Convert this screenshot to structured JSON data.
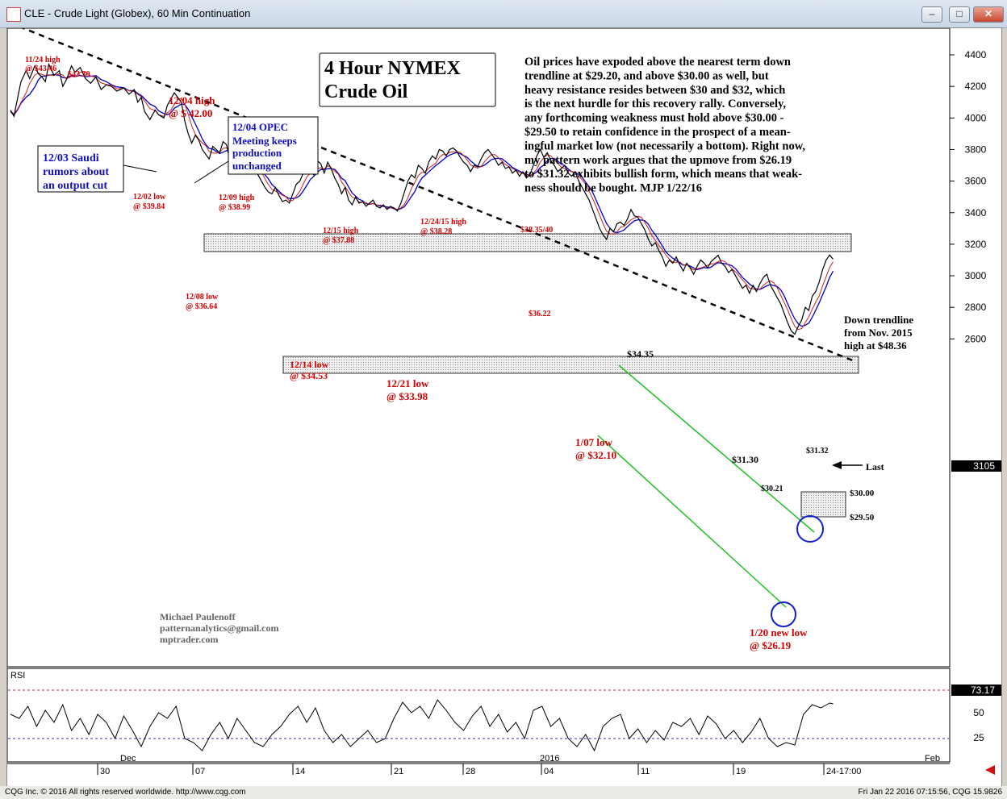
{
  "window": {
    "title": "CLE - Crude Light (Globex), 60 Min Continuation"
  },
  "status": {
    "copyright": "CQG Inc. © 2016 All rights reserved worldwide. http://www.cqg.com",
    "timestamp": "Fri Jan 22 2016 07:15:56, CQG 15.9826"
  },
  "chart_data": {
    "type": "line",
    "title": "4 Hour NYMEX Crude Oil",
    "y_ticks": [
      "4400",
      "4200",
      "4000",
      "3800",
      "3600",
      "3400",
      "3200",
      "3000",
      "2800",
      "2600"
    ],
    "ylim": [
      2520,
      4440
    ],
    "last_price": "3105",
    "x_ticks": [
      "30",
      "07",
      "14",
      "21",
      "28",
      "04",
      "11",
      "19",
      "24-17:00"
    ],
    "month_labels": [
      "Dec",
      "2016",
      "Feb"
    ],
    "series": {
      "price_points": [
        [
          0,
          4050
        ],
        [
          4,
          4010
        ],
        [
          8,
          4120
        ],
        [
          12,
          4230
        ],
        [
          18,
          4300
        ],
        [
          22,
          4250
        ],
        [
          28,
          4330
        ],
        [
          32,
          4280
        ],
        [
          36,
          4260
        ],
        [
          40,
          4230
        ],
        [
          44,
          4340
        ],
        [
          50,
          4270
        ],
        [
          56,
          4300
        ],
        [
          60,
          4200
        ],
        [
          64,
          4240
        ],
        [
          70,
          4330
        ],
        [
          74,
          4290
        ],
        [
          80,
          4320
        ],
        [
          86,
          4250
        ],
        [
          92,
          4220
        ],
        [
          98,
          4260
        ],
        [
          104,
          4180
        ],
        [
          110,
          4210
        ],
        [
          116,
          4200
        ],
        [
          122,
          4170
        ],
        [
          130,
          4190
        ],
        [
          136,
          4150
        ],
        [
          142,
          4180
        ],
        [
          146,
          4100
        ],
        [
          150,
          4130
        ],
        [
          154,
          4040
        ],
        [
          160,
          3990
        ],
        [
          166,
          4050
        ],
        [
          170,
          4020
        ],
        [
          176,
          4000
        ],
        [
          180,
          4080
        ],
        [
          184,
          4120
        ],
        [
          188,
          4160
        ],
        [
          192,
          4130
        ],
        [
          196,
          4100
        ],
        [
          200,
          3980
        ],
        [
          204,
          3900
        ],
        [
          208,
          3840
        ],
        [
          212,
          3890
        ],
        [
          216,
          3860
        ],
        [
          220,
          3800
        ],
        [
          224,
          3770
        ],
        [
          228,
          3740
        ],
        [
          232,
          3820
        ],
        [
          236,
          3800
        ],
        [
          240,
          3780
        ],
        [
          244,
          3850
        ],
        [
          248,
          3830
        ],
        [
          252,
          3720
        ],
        [
          256,
          3800
        ],
        [
          260,
          3810
        ],
        [
          264,
          3790
        ],
        [
          268,
          3740
        ],
        [
          272,
          3690
        ],
        [
          276,
          3730
        ],
        [
          280,
          3680
        ],
        [
          284,
          3640
        ],
        [
          288,
          3600
        ],
        [
          292,
          3560
        ],
        [
          296,
          3530
        ],
        [
          300,
          3520
        ],
        [
          304,
          3560
        ],
        [
          308,
          3510
        ],
        [
          312,
          3470
        ],
        [
          316,
          3480
        ],
        [
          320,
          3460
        ],
        [
          324,
          3520
        ],
        [
          328,
          3580
        ],
        [
          332,
          3600
        ],
        [
          336,
          3650
        ],
        [
          340,
          3690
        ],
        [
          344,
          3680
        ],
        [
          348,
          3640
        ],
        [
          352,
          3730
        ],
        [
          356,
          3710
        ],
        [
          360,
          3650
        ],
        [
          364,
          3720
        ],
        [
          368,
          3680
        ],
        [
          372,
          3620
        ],
        [
          376,
          3580
        ],
        [
          380,
          3520
        ],
        [
          384,
          3560
        ],
        [
          388,
          3480
        ],
        [
          392,
          3450
        ],
        [
          396,
          3500
        ],
        [
          400,
          3460
        ],
        [
          404,
          3470
        ],
        [
          408,
          3440
        ],
        [
          412,
          3460
        ],
        [
          416,
          3480
        ],
        [
          420,
          3440
        ],
        [
          424,
          3430
        ],
        [
          428,
          3450
        ],
        [
          432,
          3420
        ],
        [
          436,
          3440
        ],
        [
          440,
          3430
        ],
        [
          444,
          3410
        ],
        [
          448,
          3460
        ],
        [
          452,
          3530
        ],
        [
          456,
          3600
        ],
        [
          460,
          3640
        ],
        [
          464,
          3620
        ],
        [
          468,
          3700
        ],
        [
          472,
          3680
        ],
        [
          476,
          3650
        ],
        [
          480,
          3720
        ],
        [
          484,
          3760
        ],
        [
          488,
          3740
        ],
        [
          492,
          3800
        ],
        [
          496,
          3790
        ],
        [
          500,
          3760
        ],
        [
          504,
          3800
        ],
        [
          508,
          3810
        ],
        [
          512,
          3790
        ],
        [
          516,
          3750
        ],
        [
          520,
          3720
        ],
        [
          524,
          3700
        ],
        [
          528,
          3660
        ],
        [
          532,
          3700
        ],
        [
          536,
          3690
        ],
        [
          540,
          3740
        ],
        [
          544,
          3780
        ],
        [
          548,
          3800
        ],
        [
          552,
          3770
        ],
        [
          556,
          3740
        ],
        [
          560,
          3700
        ],
        [
          564,
          3720
        ],
        [
          568,
          3680
        ],
        [
          572,
          3690
        ],
        [
          576,
          3650
        ],
        [
          580,
          3670
        ],
        [
          584,
          3630
        ],
        [
          588,
          3660
        ],
        [
          592,
          3620
        ],
        [
          596,
          3640
        ],
        [
          600,
          3700
        ],
        [
          604,
          3760
        ],
        [
          608,
          3800
        ],
        [
          612,
          3750
        ],
        [
          616,
          3780
        ],
        [
          620,
          3730
        ],
        [
          624,
          3700
        ],
        [
          628,
          3660
        ],
        [
          632,
          3680
        ],
        [
          636,
          3700
        ],
        [
          640,
          3650
        ],
        [
          644,
          3630
        ],
        [
          648,
          3660
        ],
        [
          652,
          3600
        ],
        [
          656,
          3560
        ],
        [
          660,
          3520
        ],
        [
          664,
          3480
        ],
        [
          668,
          3420
        ],
        [
          672,
          3360
        ],
        [
          676,
          3300
        ],
        [
          680,
          3260
        ],
        [
          684,
          3230
        ],
        [
          688,
          3300
        ],
        [
          692,
          3280
        ],
        [
          696,
          3330
        ],
        [
          700,
          3340
        ],
        [
          704,
          3320
        ],
        [
          708,
          3360
        ],
        [
          712,
          3420
        ],
        [
          716,
          3380
        ],
        [
          720,
          3370
        ],
        [
          724,
          3330
        ],
        [
          728,
          3290
        ],
        [
          732,
          3230
        ],
        [
          736,
          3190
        ],
        [
          740,
          3210
        ],
        [
          744,
          3160
        ],
        [
          748,
          3120
        ],
        [
          752,
          3060
        ],
        [
          756,
          3100
        ],
        [
          760,
          3080
        ],
        [
          764,
          3120
        ],
        [
          768,
          3070
        ],
        [
          772,
          3030
        ],
        [
          776,
          3080
        ],
        [
          780,
          3050
        ],
        [
          784,
          3010
        ],
        [
          788,
          3060
        ],
        [
          792,
          3100
        ],
        [
          796,
          3080
        ],
        [
          800,
          3050
        ],
        [
          804,
          3090
        ],
        [
          808,
          3110
        ],
        [
          812,
          3130
        ],
        [
          816,
          3080
        ],
        [
          820,
          3060
        ],
        [
          824,
          3020
        ],
        [
          828,
          3040
        ],
        [
          832,
          3000
        ],
        [
          836,
          2960
        ],
        [
          840,
          2920
        ],
        [
          844,
          2940
        ],
        [
          848,
          2890
        ],
        [
          852,
          2940
        ],
        [
          856,
          2900
        ],
        [
          860,
          2950
        ],
        [
          864,
          2990
        ],
        [
          868,
          3010
        ],
        [
          872,
          2940
        ],
        [
          876,
          2900
        ],
        [
          880,
          2860
        ],
        [
          884,
          2820
        ],
        [
          888,
          2760
        ],
        [
          892,
          2700
        ],
        [
          896,
          2650
        ],
        [
          900,
          2630
        ],
        [
          904,
          2680
        ],
        [
          908,
          2720
        ],
        [
          912,
          2800
        ],
        [
          916,
          2780
        ],
        [
          920,
          2870
        ],
        [
          924,
          2900
        ],
        [
          928,
          2960
        ],
        [
          932,
          3040
        ],
        [
          936,
          3100
        ],
        [
          940,
          3132
        ],
        [
          944,
          3105
        ]
      ],
      "rsi_points": [
        [
          0,
          60
        ],
        [
          10,
          55
        ],
        [
          20,
          70
        ],
        [
          30,
          45
        ],
        [
          40,
          65
        ],
        [
          50,
          50
        ],
        [
          60,
          72
        ],
        [
          70,
          40
        ],
        [
          80,
          55
        ],
        [
          90,
          35
        ],
        [
          100,
          60
        ],
        [
          110,
          50
        ],
        [
          120,
          30
        ],
        [
          130,
          58
        ],
        [
          140,
          40
        ],
        [
          150,
          20
        ],
        [
          160,
          45
        ],
        [
          170,
          62
        ],
        [
          180,
          55
        ],
        [
          190,
          70
        ],
        [
          200,
          30
        ],
        [
          210,
          25
        ],
        [
          220,
          15
        ],
        [
          230,
          35
        ],
        [
          240,
          50
        ],
        [
          250,
          30
        ],
        [
          260,
          55
        ],
        [
          270,
          40
        ],
        [
          280,
          25
        ],
        [
          290,
          20
        ],
        [
          300,
          35
        ],
        [
          310,
          45
        ],
        [
          320,
          60
        ],
        [
          330,
          70
        ],
        [
          340,
          50
        ],
        [
          350,
          68
        ],
        [
          360,
          40
        ],
        [
          370,
          25
        ],
        [
          380,
          35
        ],
        [
          390,
          20
        ],
        [
          400,
          30
        ],
        [
          410,
          40
        ],
        [
          420,
          25
        ],
        [
          430,
          30
        ],
        [
          440,
          55
        ],
        [
          450,
          75
        ],
        [
          460,
          62
        ],
        [
          470,
          70
        ],
        [
          480,
          55
        ],
        [
          490,
          78
        ],
        [
          500,
          65
        ],
        [
          510,
          50
        ],
        [
          520,
          40
        ],
        [
          530,
          58
        ],
        [
          540,
          70
        ],
        [
          550,
          45
        ],
        [
          560,
          60
        ],
        [
          570,
          38
        ],
        [
          580,
          50
        ],
        [
          590,
          30
        ],
        [
          600,
          65
        ],
        [
          610,
          70
        ],
        [
          620,
          45
        ],
        [
          630,
          55
        ],
        [
          640,
          30
        ],
        [
          650,
          20
        ],
        [
          660,
          35
        ],
        [
          670,
          15
        ],
        [
          680,
          45
        ],
        [
          690,
          55
        ],
        [
          700,
          60
        ],
        [
          710,
          30
        ],
        [
          720,
          42
        ],
        [
          730,
          25
        ],
        [
          740,
          40
        ],
        [
          750,
          28
        ],
        [
          760,
          50
        ],
        [
          770,
          45
        ],
        [
          780,
          55
        ],
        [
          790,
          35
        ],
        [
          800,
          58
        ],
        [
          810,
          48
        ],
        [
          820,
          30
        ],
        [
          830,
          40
        ],
        [
          840,
          25
        ],
        [
          850,
          38
        ],
        [
          860,
          55
        ],
        [
          870,
          30
        ],
        [
          880,
          20
        ],
        [
          890,
          25
        ],
        [
          900,
          22
        ],
        [
          910,
          60
        ],
        [
          920,
          72
        ],
        [
          930,
          68
        ],
        [
          940,
          74
        ],
        [
          944,
          73
        ]
      ]
    },
    "annotations": {
      "commentary": [
        "Oil prices have expoded above the nearest term down",
        "trendline at $29.20, and above $30.00 as well, but",
        "heavy resistance resides between $30 and $32, which",
        "is the next hurdle for this recovery rally. Conversely,",
        "any forthcoming weakness must hold above $30.00 -",
        "$29.50 to retain confidence in the prospect of a mean-",
        "ingful market low (not necessarily a bottom).  Right now,",
        "my pattern work argues that the upmove from $26.19",
        "to $31.32 exhibits bullish form, which means that weak-",
        "ness should be bought.  MJP 1/22/16"
      ],
      "title_line1": "4 Hour NYMEX",
      "title_line2": "Crude Oil",
      "box_saudi": [
        "12/03 Saudi",
        "rumors about",
        "an output cut"
      ],
      "box_opec": [
        "12/04 OPEC",
        "Meeting keeps",
        "production",
        "unchanged"
      ],
      "nov24_a": "11/24 high",
      "nov24_b": "@ $43.46",
      "p4330": "$43.30",
      "dec04_a": "12/04 high",
      "dec04_b": "@ $ 42.00",
      "dec02_a": "12/02 low",
      "dec02_b": "@ $39.84",
      "dec09_a": "12/09 high",
      "dec09_b": "@ $38.99",
      "dec08_a": "12/08 low",
      "dec08_b": "@ $36.64",
      "dec15_a": "12/15 high",
      "dec15_b": "@ $37.88",
      "dec24_a": "12/24/15 high",
      "dec24_b": "@ $38.28",
      "p3835": "$38.35/40",
      "p3622": "$36.22",
      "dec14_a": "12/14 low",
      "dec14_b": "@ $34.53",
      "dec21_a": "12/21 low",
      "dec21_b": "@ $33.98",
      "p3435": "$34.35",
      "jan07_a": "1/07 low",
      "jan07_b": "@ $32.10",
      "p3130": "$31.30",
      "p3021": "$30.21",
      "p3132": "$31.32",
      "last": "Last",
      "p3000": "$30.00",
      "p2950": "$29.50",
      "jan20_a": "1/20 new low",
      "jan20_b": "@ $26.19",
      "trend_a": "Down trendline",
      "trend_b": "from Nov. 2015",
      "trend_c": "high at $48.36",
      "author": "Michael Paulenoff",
      "email": "patternanalytics@gmail.com",
      "site": "mptrader.com"
    },
    "rsi": {
      "label": "RSI",
      "ticks": [
        "50",
        "25"
      ],
      "value": "73.17"
    }
  }
}
